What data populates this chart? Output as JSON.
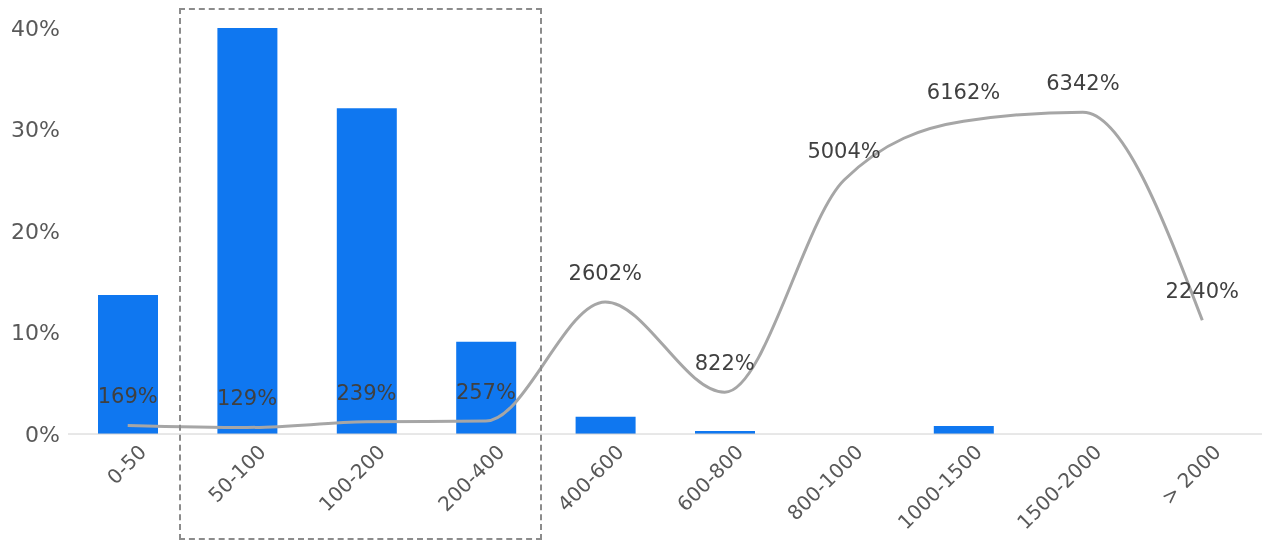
{
  "chart_data": {
    "type": "bar",
    "categories": [
      "0-50",
      "50-100",
      "100-200",
      "200-400",
      "400-600",
      "600-800",
      "800-1000",
      "1000-1500",
      "1500-2000",
      "> 2000"
    ],
    "series": [
      {
        "color": "#0f77f0",
        "values": [
          13.7,
          40,
          32.1,
          9.1,
          1.7,
          0.3,
          0,
          0.8,
          0,
          0
        ]
      },
      {
        "type": "line",
        "axis": "y2",
        "color": "#a6a6a6",
        "values": [
          169,
          129,
          239,
          257,
          2602,
          822,
          5004,
          6162,
          6342,
          2240
        ],
        "value_labels": [
          "169%",
          "129%",
          "239%",
          "257%",
          "2602%",
          "822%",
          "5004%",
          "6162%",
          "6342%",
          "2240%"
        ]
      }
    ],
    "ylim": [
      0,
      40
    ],
    "yticks": [
      {
        "value": 0,
        "label": "0%"
      },
      {
        "value": 10,
        "label": "10%"
      },
      {
        "value": 20,
        "label": "20%"
      },
      {
        "value": 30,
        "label": "30%"
      },
      {
        "value": 40,
        "label": "40%"
      }
    ],
    "marker": "none",
    "line_style": "solid"
  }
}
